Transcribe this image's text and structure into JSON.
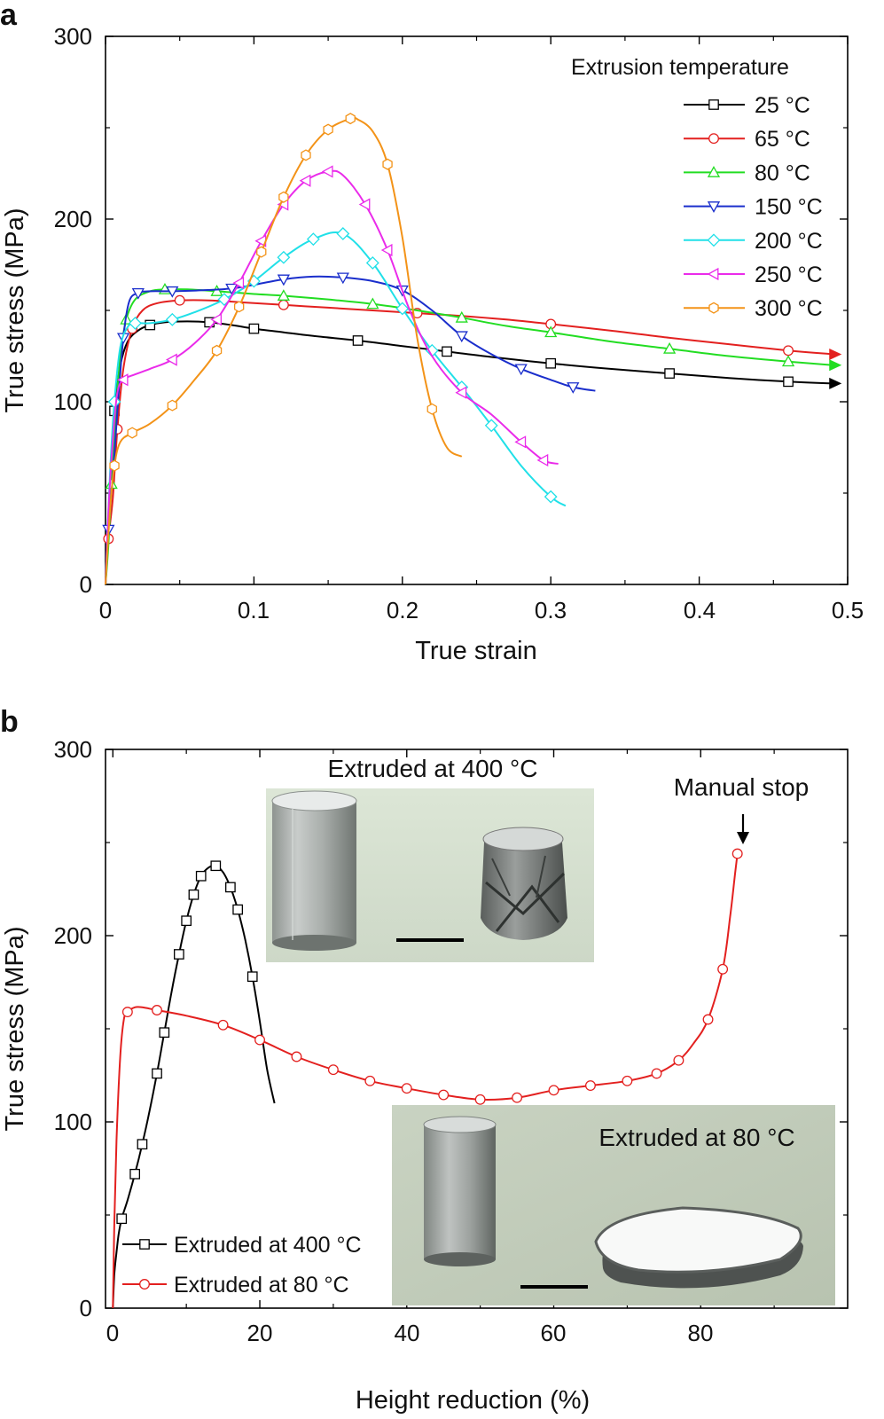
{
  "figure": {
    "panel_a_label": "a",
    "panel_b_label": "b"
  },
  "chart_data": [
    {
      "type": "line",
      "panel": "a",
      "xlabel": "True strain",
      "ylabel": "True stress (MPa)",
      "xlim": [
        0,
        0.5
      ],
      "ylim": [
        0,
        300
      ],
      "xticks": [
        0,
        0.1,
        0.2,
        0.3,
        0.4,
        0.5
      ],
      "xtick_labels": [
        "0",
        "0.1",
        "0.2",
        "0.3",
        "0.4",
        "0.5"
      ],
      "yticks": [
        0,
        100,
        200,
        300
      ],
      "ytick_labels": [
        "0",
        "100",
        "200",
        "300"
      ],
      "legend_title": "Extrusion temperature",
      "legend_position": "top-right",
      "series": [
        {
          "name": "25 °C",
          "color": "#000000",
          "marker": "square",
          "arrow": true,
          "x": [
            0,
            0.003,
            0.006,
            0.01,
            0.015,
            0.022,
            0.03,
            0.04,
            0.055,
            0.07,
            0.085,
            0.1,
            0.12,
            0.14,
            0.17,
            0.2,
            0.23,
            0.26,
            0.3,
            0.34,
            0.38,
            0.42,
            0.46,
            0.49
          ],
          "y": [
            0,
            50,
            95,
            120,
            133,
            139,
            142,
            143.5,
            144,
            143.5,
            142,
            140,
            138,
            136,
            133.5,
            130.5,
            127.5,
            124.5,
            121,
            118,
            115.5,
            113,
            111,
            110
          ],
          "marker_idx": [
            2,
            6,
            9,
            11,
            14,
            16,
            18,
            20,
            22
          ]
        },
        {
          "name": "65 °C",
          "color": "#e3201f",
          "marker": "circle",
          "arrow": true,
          "x": [
            0,
            0.002,
            0.005,
            0.008,
            0.012,
            0.018,
            0.025,
            0.035,
            0.05,
            0.07,
            0.09,
            0.12,
            0.15,
            0.18,
            0.21,
            0.24,
            0.27,
            0.3,
            0.34,
            0.38,
            0.42,
            0.46,
            0.49
          ],
          "y": [
            0,
            25,
            48,
            85,
            118,
            140,
            150,
            154,
            155.5,
            155.5,
            154.5,
            153,
            151.5,
            150,
            148.5,
            147,
            145,
            142.5,
            139,
            135,
            131.5,
            128,
            126
          ],
          "marker_idx": [
            1,
            3,
            5,
            8,
            11,
            14,
            17,
            21
          ]
        },
        {
          "name": "80 °C",
          "color": "#22dd22",
          "marker": "triangle-up",
          "arrow": true,
          "x": [
            0,
            0.002,
            0.004,
            0.007,
            0.01,
            0.014,
            0.02,
            0.03,
            0.04,
            0.055,
            0.075,
            0.1,
            0.12,
            0.15,
            0.18,
            0.21,
            0.24,
            0.27,
            0.3,
            0.34,
            0.38,
            0.42,
            0.46,
            0.49
          ],
          "y": [
            0,
            22,
            55,
            95,
            125,
            145,
            156,
            160.5,
            161.5,
            161.5,
            160.5,
            159,
            158,
            156,
            153.5,
            150,
            146,
            141.5,
            138,
            133,
            129,
            125,
            122,
            120
          ],
          "marker_idx": [
            2,
            5,
            8,
            10,
            12,
            14,
            16,
            18,
            20,
            22
          ]
        },
        {
          "name": "150 °C",
          "color": "#1a2ecc",
          "marker": "triangle-down",
          "arrow": false,
          "x": [
            0,
            0.002,
            0.005,
            0.008,
            0.012,
            0.016,
            0.022,
            0.03,
            0.045,
            0.065,
            0.085,
            0.1,
            0.12,
            0.14,
            0.16,
            0.18,
            0.2,
            0.22,
            0.24,
            0.26,
            0.28,
            0.3,
            0.315,
            0.33
          ],
          "y": [
            0,
            30,
            60,
            95,
            135,
            155,
            159.5,
            160.5,
            160.5,
            161,
            162,
            164,
            167,
            168.5,
            168,
            166,
            161,
            150,
            136,
            126,
            118,
            112,
            108,
            106
          ],
          "marker_idx": [
            1,
            4,
            6,
            8,
            10,
            12,
            14,
            16,
            18,
            20,
            22
          ]
        },
        {
          "name": "200 °C",
          "color": "#20e0e8",
          "marker": "diamond",
          "arrow": false,
          "x": [
            0,
            0.003,
            0.006,
            0.01,
            0.015,
            0.02,
            0.03,
            0.045,
            0.06,
            0.08,
            0.1,
            0.12,
            0.14,
            0.16,
            0.18,
            0.2,
            0.22,
            0.24,
            0.26,
            0.28,
            0.3,
            0.31
          ],
          "y": [
            0,
            60,
            100,
            130,
            141,
            143,
            143,
            145,
            149,
            156,
            166,
            179,
            189,
            192,
            176,
            151,
            128,
            108,
            87,
            65,
            48,
            43
          ],
          "marker_idx": [
            2,
            5,
            7,
            9,
            10,
            11,
            12,
            13,
            14,
            15,
            16,
            17,
            18,
            20
          ]
        },
        {
          "name": "250 °C",
          "color": "#ea2bea",
          "marker": "triangle-left",
          "arrow": false,
          "x": [
            0,
            0.002,
            0.005,
            0.008,
            0.012,
            0.02,
            0.03,
            0.045,
            0.06,
            0.075,
            0.09,
            0.105,
            0.12,
            0.135,
            0.15,
            0.16,
            0.175,
            0.19,
            0.205,
            0.22,
            0.24,
            0.26,
            0.28,
            0.295,
            0.305
          ],
          "y": [
            0,
            40,
            80,
            105,
            112,
            115,
            118,
            123,
            132,
            145,
            165,
            188,
            208,
            221,
            226,
            224,
            208,
            183,
            150,
            125,
            105,
            93,
            78,
            68,
            66
          ],
          "marker_idx": [
            4,
            7,
            9,
            10,
            11,
            12,
            13,
            14,
            16,
            17,
            20,
            22,
            23
          ]
        },
        {
          "name": "300 °C",
          "color": "#f39318",
          "marker": "hexagon",
          "arrow": false,
          "x": [
            0,
            0.003,
            0.006,
            0.01,
            0.018,
            0.03,
            0.045,
            0.06,
            0.075,
            0.09,
            0.105,
            0.12,
            0.135,
            0.15,
            0.165,
            0.17,
            0.18,
            0.19,
            0.2,
            0.21,
            0.22,
            0.23,
            0.24
          ],
          "y": [
            0,
            40,
            65,
            78,
            83,
            88,
            98,
            112,
            128,
            152,
            182,
            212,
            235,
            249,
            255,
            254.5,
            248,
            230,
            190,
            135,
            96,
            75,
            70
          ],
          "marker_idx": [
            2,
            4,
            6,
            8,
            9,
            10,
            11,
            12,
            13,
            14,
            17,
            20
          ]
        }
      ]
    },
    {
      "type": "line",
      "panel": "b",
      "xlabel": "Height reduction (%)",
      "ylabel": "True stress (MPa)",
      "xlim": [
        -1,
        100
      ],
      "ylim": [
        0,
        300
      ],
      "xticks": [
        0,
        20,
        40,
        60,
        80
      ],
      "xtick_labels": [
        "0",
        "20",
        "40",
        "60",
        "80"
      ],
      "yticks": [
        0,
        100,
        200,
        300
      ],
      "ytick_labels": [
        "0",
        "100",
        "200",
        "300"
      ],
      "legend_position": "bottom-left",
      "series": [
        {
          "name": "Extruded at 400 °C",
          "color": "#000000",
          "marker": "square",
          "x": [
            0,
            0.2,
            0.5,
            0.8,
            1.2,
            2,
            3,
            4,
            5,
            6,
            7,
            8,
            9,
            10,
            11,
            12,
            13,
            14,
            15,
            16,
            17,
            18,
            19,
            20,
            21,
            22
          ],
          "y": [
            0,
            18,
            30,
            40,
            48,
            58,
            72,
            88,
            106,
            126,
            148,
            170,
            190,
            208,
            222,
            232,
            236.5,
            237.5,
            234,
            226,
            214,
            198,
            178,
            154,
            128,
            110
          ],
          "marker_idx": [
            4,
            6,
            7,
            9,
            10,
            12,
            13,
            14,
            15,
            17,
            19,
            20,
            22
          ]
        },
        {
          "name": "Extruded at 80 °C",
          "color": "#e3201f",
          "marker": "circle",
          "x": [
            0,
            0.2,
            0.5,
            1,
            1.5,
            2,
            3,
            4,
            6,
            10,
            15,
            20,
            25,
            30,
            35,
            40,
            45,
            50,
            55,
            60,
            65,
            70,
            74,
            77,
            79,
            81,
            83,
            84,
            84.7,
            85
          ],
          "y": [
            0,
            45,
            90,
            135,
            155,
            159,
            161.5,
            161.5,
            160,
            157,
            152,
            144,
            135,
            128,
            122,
            118,
            114.5,
            112,
            113,
            117,
            119.5,
            122,
            126,
            133,
            142,
            155,
            182,
            210,
            234,
            244
          ],
          "marker_idx": [
            5,
            8,
            10,
            11,
            12,
            13,
            14,
            15,
            16,
            17,
            18,
            19,
            20,
            21,
            22,
            23,
            25,
            26,
            29
          ]
        }
      ],
      "annotations": {
        "manual_stop": "Manual stop",
        "inset_top_title": "Extruded at 400 °C",
        "inset_bottom_title": "Extruded at 80 °C"
      }
    }
  ]
}
